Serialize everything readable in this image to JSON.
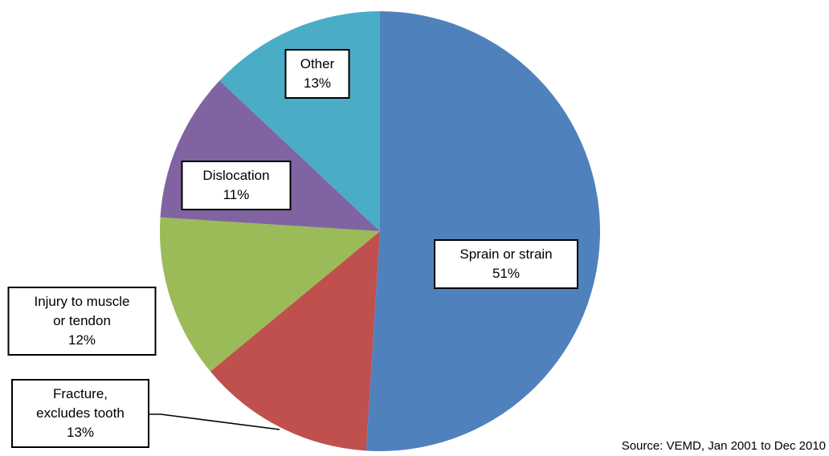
{
  "chart_data": {
    "type": "pie",
    "categories": [
      "Sprain or strain",
      "Fracture,\nexcludes tooth",
      "Injury to muscle\nor tendon",
      "Dislocation",
      "Other"
    ],
    "values": [
      51,
      13,
      12,
      11,
      13
    ],
    "value_labels": [
      "51%",
      "13%",
      "12%",
      "11%",
      "13%"
    ],
    "colors": [
      "#4f81bd",
      "#c0504d",
      "#9bbb59",
      "#8064a2",
      "#4bacc6"
    ],
    "annotation": "Source: VEMD, Jan 2001 to Dec 2010"
  }
}
